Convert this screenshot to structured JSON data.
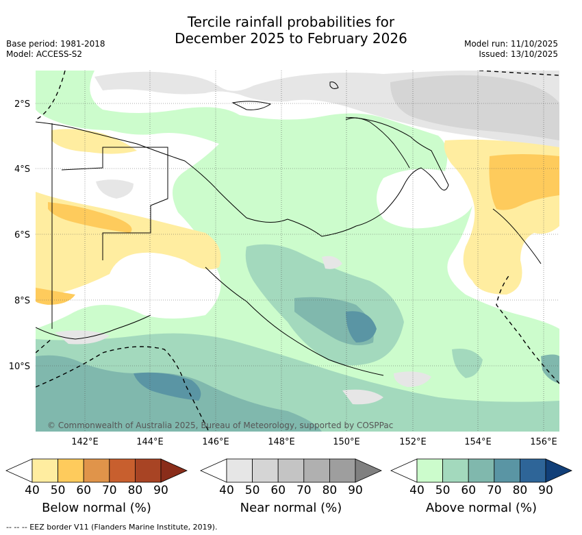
{
  "title_line1": "Tercile rainfall probabilities for",
  "title_line2": "December 2025 to February 2026",
  "base_period": "Base period: 1981-2018",
  "model": "Model: ACCESS-S2",
  "model_run": "Model run: 11/10/2025",
  "issued": "Issued: 13/10/2025",
  "lat_ticks": [
    "2°S",
    "4°S",
    "6°S",
    "8°S",
    "10°S"
  ],
  "lon_ticks": [
    "142°E",
    "144°E",
    "146°E",
    "148°E",
    "150°E",
    "152°E",
    "154°E",
    "156°E"
  ],
  "credit": "© Commonwealth of Australia 2025, Bureau of Meteorology, supported by COSPPac",
  "colorbars": [
    {
      "title": "Below normal (%)",
      "ticks": [
        "40",
        "50",
        "60",
        "70",
        "80",
        "90"
      ],
      "colors": [
        "#ffffff",
        "#ffeda0",
        "#fecb5c",
        "#e0944a",
        "#c85f2e",
        "#a84424",
        "#8a2d1a"
      ]
    },
    {
      "title": "Near normal (%)",
      "ticks": [
        "40",
        "50",
        "60",
        "70",
        "80",
        "90"
      ],
      "colors": [
        "#ffffff",
        "#e6e6e6",
        "#d5d5d5",
        "#c4c4c4",
        "#b0b0b0",
        "#9e9e9e",
        "#808080"
      ]
    },
    {
      "title": "Above normal (%)",
      "ticks": [
        "40",
        "50",
        "60",
        "70",
        "80",
        "90"
      ],
      "colors": [
        "#ffffff",
        "#ccfccc",
        "#a3d9bd",
        "#80b8ad",
        "#5a95a4",
        "#2e6598",
        "#113f78"
      ]
    }
  ],
  "footnote": "--  --  -- EEZ border V11 (Flanders Marine Institute, 2019)."
}
